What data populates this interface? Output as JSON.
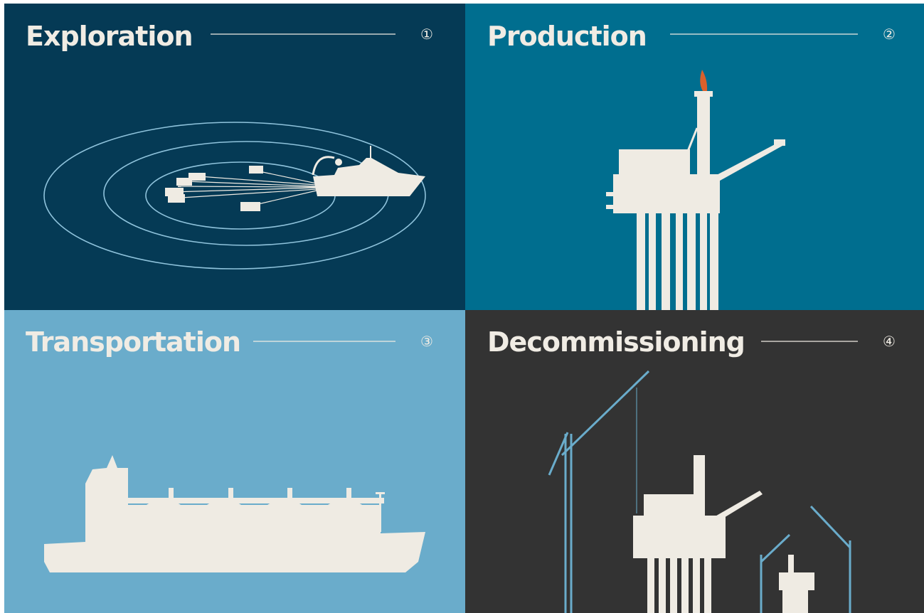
{
  "panels": [
    {
      "title": "Exploration",
      "number": "①"
    },
    {
      "title": "Production",
      "number": "②"
    },
    {
      "title": "Transportation",
      "number": "③"
    },
    {
      "title": "Decommissioning",
      "number": "④"
    }
  ]
}
